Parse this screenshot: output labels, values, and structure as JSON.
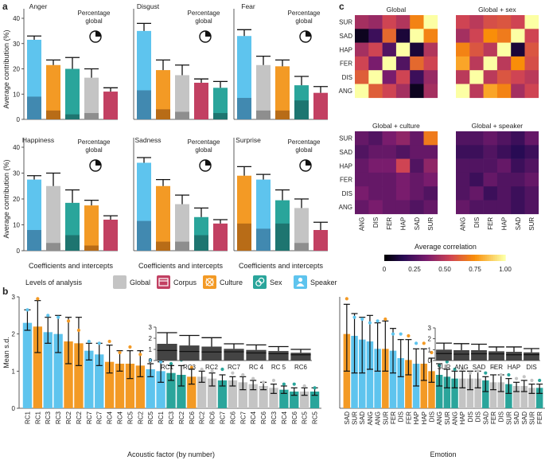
{
  "panel_labels": {
    "a": "a",
    "b": "b",
    "c": "c"
  },
  "colors": {
    "speaker": "#5ec4ee",
    "culture": "#f39a25",
    "sex": "#2aa59b",
    "global": "#c4c4c4",
    "corpus": "#c24062",
    "inset": "#444444",
    "speaker_dark": "#4189b0",
    "culture_dark": "#b86c17",
    "sex_dark": "#1e7570",
    "global_dark": "#8e8e8e",
    "corpus_dark": "#7f1d3d",
    "bg": "#ffffff"
  },
  "legend": {
    "title": "Levels of analysis",
    "items": [
      {
        "label": "Global",
        "color": "#c4c4c4",
        "icon": "bar-chart-icon"
      },
      {
        "label": "Corpus",
        "color": "#c24062",
        "icon": "corpus-icon"
      },
      {
        "label": "Culture",
        "color": "#f39a25",
        "icon": "culture-icon"
      },
      {
        "label": "Sex",
        "color": "#2aa59b",
        "icon": "sex-icon"
      },
      {
        "label": "Speaker",
        "color": "#5ec4ee",
        "icon": "speaker-icon"
      }
    ]
  },
  "chart_data": [
    {
      "id": "panel-a",
      "type": "bar",
      "ylabel": "Average contribution (%)",
      "xlabel": "Coefficients and intercepts",
      "ylim": [
        0,
        40
      ],
      "yticks": [
        0,
        10,
        20,
        30,
        40
      ],
      "pie_label": "Percentage global",
      "subplots": [
        {
          "title": "Anger",
          "pie_fraction": 0.25,
          "bars": [
            {
              "level": "Speaker",
              "value": 31.5,
              "err": 1.5,
              "intercept": 9
            },
            {
              "level": "Culture",
              "value": 21.5,
              "err": 2.0,
              "intercept": 3.5
            },
            {
              "level": "Sex",
              "value": 20.0,
              "err": 4.5,
              "intercept": 2
            },
            {
              "level": "Global",
              "value": 16.5,
              "err": 3.5,
              "intercept": 2.5
            },
            {
              "level": "Corpus",
              "value": 11.0,
              "err": 1.5,
              "intercept": 0
            }
          ]
        },
        {
          "title": "Disgust",
          "pie_fraction": 0.25,
          "bars": [
            {
              "level": "Speaker",
              "value": 35.0,
              "err": 3.0,
              "intercept": 11.5
            },
            {
              "level": "Culture",
              "value": 19.5,
              "err": 4.0,
              "intercept": 4.0
            },
            {
              "level": "Global",
              "value": 17.5,
              "err": 4.0,
              "intercept": 3.0
            },
            {
              "level": "Corpus",
              "value": 14.5,
              "err": 1.5,
              "intercept": 0
            },
            {
              "level": "Sex",
              "value": 12.5,
              "err": 2.5,
              "intercept": 2.5
            }
          ]
        },
        {
          "title": "Fear",
          "pie_fraction": 0.25,
          "bars": [
            {
              "level": "Speaker",
              "value": 33.0,
              "err": 2.5,
              "intercept": 8.5
            },
            {
              "level": "Global",
              "value": 21.5,
              "err": 3.5,
              "intercept": 3.5
            },
            {
              "level": "Culture",
              "value": 21.0,
              "err": 2.5,
              "intercept": 3.5
            },
            {
              "level": "Sex",
              "value": 13.5,
              "err": 3.5,
              "intercept": 7.5
            },
            {
              "level": "Corpus",
              "value": 10.5,
              "err": 2.5,
              "intercept": 0
            }
          ]
        },
        {
          "title": "Happiness",
          "pie_fraction": 0.25,
          "bars": [
            {
              "level": "Speaker",
              "value": 27.5,
              "err": 1.5,
              "intercept": 8.0
            },
            {
              "level": "Global",
              "value": 25.0,
              "err": 5.0,
              "intercept": 3.0
            },
            {
              "level": "Sex",
              "value": 18.5,
              "err": 5.0,
              "intercept": 6.0
            },
            {
              "level": "Culture",
              "value": 17.5,
              "err": 2.0,
              "intercept": 2.0
            },
            {
              "level": "Corpus",
              "value": 12.0,
              "err": 1.5,
              "intercept": 0
            }
          ]
        },
        {
          "title": "Sadness",
          "pie_fraction": 0.25,
          "bars": [
            {
              "level": "Speaker",
              "value": 34.0,
              "err": 2.0,
              "intercept": 11.5
            },
            {
              "level": "Culture",
              "value": 25.0,
              "err": 2.5,
              "intercept": 3.5
            },
            {
              "level": "Global",
              "value": 18.0,
              "err": 3.5,
              "intercept": 3.5
            },
            {
              "level": "Sex",
              "value": 13.0,
              "err": 3.5,
              "intercept": 6.0
            },
            {
              "level": "Corpus",
              "value": 10.5,
              "err": 1.5,
              "intercept": 0
            }
          ]
        },
        {
          "title": "Surprise",
          "pie_fraction": 0.25,
          "bars": [
            {
              "level": "Culture",
              "value": 29.0,
              "err": 3.5,
              "intercept": 10.5
            },
            {
              "level": "Speaker",
              "value": 27.5,
              "err": 2.0,
              "intercept": 8.5
            },
            {
              "level": "Sex",
              "value": 19.5,
              "err": 4.0,
              "intercept": 10.5
            },
            {
              "level": "Global",
              "value": 16.5,
              "err": 3.5,
              "intercept": 3.0
            },
            {
              "level": "Corpus",
              "value": 8.0,
              "err": 3.0,
              "intercept": 0
            }
          ]
        }
      ]
    },
    {
      "id": "panel-b-left",
      "type": "bar",
      "ylabel": "Mean s.d.",
      "xlabel": "Acoustic factor (by number)",
      "ylim": [
        0,
        3
      ],
      "yticks": [
        0,
        1,
        2,
        3
      ],
      "categories": [
        "RC1",
        "RC1",
        "RC3",
        "RC3",
        "RC2",
        "RC2",
        "RC7",
        "RC7",
        "RC4",
        "RC4",
        "RC5",
        "RC2",
        "RC5",
        "RC1",
        "RC3",
        "RC2",
        "RC6",
        "RC2",
        "RC6",
        "RC7",
        "RC6",
        "RC7",
        "RC4",
        "RC6",
        "RC3",
        "RC4",
        "RC6",
        "RC5",
        "RC5"
      ],
      "levels": [
        "Speaker",
        "Culture",
        "Speaker",
        "Speaker",
        "Culture",
        "Culture",
        "Speaker",
        "Speaker",
        "Culture",
        "Culture",
        "Culture",
        "Culture",
        "Speaker",
        "Speaker",
        "Sex",
        "Sex",
        "Culture",
        "Global",
        "Global",
        "Sex",
        "Global",
        "Global",
        "Global",
        "Global",
        "Global",
        "Sex",
        "Sex",
        "Global",
        "Sex"
      ],
      "values": [
        2.3,
        2.2,
        2.05,
        2.0,
        1.8,
        1.75,
        1.55,
        1.45,
        1.25,
        1.2,
        1.2,
        1.15,
        1.05,
        1.0,
        0.95,
        0.9,
        0.85,
        0.85,
        0.8,
        0.75,
        0.75,
        0.7,
        0.65,
        0.6,
        0.55,
        0.5,
        0.45,
        0.45,
        0.45
      ],
      "err_low": [
        0.2,
        0.7,
        0.3,
        0.5,
        0.6,
        0.6,
        0.25,
        0.3,
        0.3,
        0.2,
        0.4,
        0.3,
        0.2,
        0.3,
        0.2,
        0.3,
        0.2,
        0.15,
        0.2,
        0.15,
        0.15,
        0.2,
        0.15,
        0.1,
        0.15,
        0.1,
        0.1,
        0.1,
        0.1
      ],
      "err_high": [
        0.35,
        0.7,
        0.4,
        0.5,
        0.65,
        0.7,
        0.2,
        0.3,
        0.45,
        0.35,
        0.35,
        0.4,
        0.15,
        0.25,
        0.2,
        0.25,
        0.2,
        0.15,
        0.15,
        0.15,
        0.1,
        0.15,
        0.1,
        0.1,
        0.1,
        0.1,
        0.1,
        0.1,
        0.1
      ],
      "dots": [
        2.65,
        2.95,
        2.5,
        2.45,
        2.35,
        2.1,
        1.8,
        1.75,
        1.8,
        1.5,
        1.65,
        1.45,
        1.3,
        1.25,
        1.2,
        1.3,
        1.1,
        1.05,
        1.0,
        1.05,
        0.95,
        0.9,
        0.8,
        0.7,
        0.75,
        0.65,
        0.65,
        0.6,
        0.55
      ],
      "inset": {
        "ylim": [
          0,
          3
        ],
        "yticks": [
          0,
          1,
          2,
          3
        ],
        "categories": [
          "RC1",
          "RC3",
          "RC2",
          "RC7",
          "RC 4",
          "RC 5",
          "RC6"
        ],
        "values": [
          1.5,
          1.35,
          1.25,
          1.05,
          0.95,
          0.85,
          0.7
        ],
        "err": [
          1.0,
          0.9,
          0.8,
          0.45,
          0.45,
          0.4,
          0.3
        ]
      }
    },
    {
      "id": "panel-b-right",
      "type": "bar",
      "xlabel": "Emotion",
      "ylim": [
        0,
        3
      ],
      "categories": [
        "SAD",
        "SUR",
        "SAD",
        "ANG",
        "ANG",
        "SUR",
        "FER",
        "DIS",
        "FER",
        "HAP",
        "HAP",
        "DIS",
        "ANG",
        "SUR",
        "ANG",
        "HAP",
        "DIS",
        "DIS",
        "SAD",
        "FER",
        "DIS",
        "SUR",
        "SAD",
        "SAD",
        "SUR",
        "FER"
      ],
      "levels": [
        "Culture",
        "Speaker",
        "Speaker",
        "Speaker",
        "Speaker",
        "Culture",
        "Speaker",
        "Speaker",
        "Culture",
        "Speaker",
        "Culture",
        "Culture",
        "Sex",
        "Sex",
        "Sex",
        "Global",
        "Global",
        "Global",
        "Sex",
        "Global",
        "Global",
        "Sex",
        "Global",
        "Global",
        "Global",
        "Sex"
      ],
      "values": [
        2.0,
        1.95,
        1.85,
        1.8,
        1.6,
        1.6,
        1.55,
        1.35,
        1.3,
        1.2,
        1.2,
        1.0,
        0.9,
        0.85,
        0.8,
        0.8,
        0.8,
        0.8,
        0.75,
        0.7,
        0.7,
        0.65,
        0.6,
        0.6,
        0.55,
        0.55
      ],
      "err_low": [
        1.0,
        1.0,
        0.9,
        0.75,
        0.6,
        0.6,
        0.6,
        0.5,
        0.4,
        0.6,
        0.45,
        0.3,
        0.3,
        0.3,
        0.25,
        0.25,
        0.3,
        0.25,
        0.3,
        0.2,
        0.25,
        0.25,
        0.15,
        0.15,
        0.15,
        0.15
      ],
      "err_high": [
        0.8,
        0.6,
        0.6,
        0.7,
        0.7,
        0.75,
        0.6,
        0.5,
        0.55,
        0.4,
        0.4,
        0.35,
        0.3,
        0.2,
        0.2,
        0.2,
        0.2,
        0.2,
        0.1,
        0.2,
        0.2,
        0.15,
        0.1,
        0.15,
        0.1,
        0.1
      ],
      "dots": [
        2.95,
        2.45,
        2.4,
        2.3,
        2.35,
        2.4,
        2.0,
        2.0,
        1.95,
        1.75,
        1.75,
        1.5,
        1.15,
        1.25,
        1.05,
        1.05,
        0.95,
        1.0,
        0.95,
        1.1,
        0.9,
        0.9,
        0.8,
        0.85,
        0.75,
        0.75
      ],
      "inset": {
        "ylim": [
          0,
          3
        ],
        "yticks": [
          0,
          1,
          2,
          3
        ],
        "categories": [
          "SUR",
          "ANG",
          "SAD",
          "FER",
          "HAP",
          "DIS"
        ],
        "values": [
          1.0,
          0.95,
          0.95,
          0.85,
          0.8,
          0.75
        ],
        "err": [
          0.6,
          0.6,
          0.55,
          0.4,
          0.45,
          0.35
        ]
      }
    },
    {
      "id": "panel-c",
      "type": "heatmap",
      "rows": [
        "SUR",
        "SAD",
        "HAP",
        "FER",
        "DIS",
        "ANG"
      ],
      "cols": [
        "ANG",
        "DIS",
        "FER",
        "HAP",
        "SAD",
        "SUR"
      ],
      "colorbar": {
        "label": "Average correlation",
        "ticks": [
          0,
          0.25,
          0.5,
          0.75,
          1.0
        ],
        "tick_labels": [
          "0",
          "0.25",
          "0.50",
          "0.75",
          "1.00"
        ]
      },
      "matrices": [
        {
          "title": "Global",
          "values": [
            [
              0.45,
              0.42,
              0.55,
              0.48,
              0.72,
              1.0
            ],
            [
              0.05,
              0.2,
              0.65,
              0.1,
              1.0,
              0.72
            ],
            [
              0.45,
              0.55,
              0.25,
              1.0,
              0.1,
              0.48
            ],
            [
              0.55,
              0.35,
              1.0,
              0.25,
              0.65,
              0.55
            ],
            [
              0.62,
              1.0,
              0.35,
              0.55,
              0.2,
              0.42
            ],
            [
              1.0,
              0.62,
              0.55,
              0.45,
              0.05,
              0.45
            ]
          ]
        },
        {
          "title": "Global + sex",
          "values": [
            [
              0.55,
              0.5,
              0.58,
              0.6,
              0.55,
              1.0
            ],
            [
              0.45,
              0.55,
              0.75,
              0.7,
              1.0,
              0.55
            ],
            [
              0.72,
              0.6,
              0.5,
              1.0,
              0.1,
              0.6
            ],
            [
              0.8,
              0.5,
              1.0,
              0.5,
              0.75,
              0.58
            ],
            [
              0.5,
              1.0,
              0.5,
              0.6,
              0.55,
              0.5
            ],
            [
              1.0,
              0.5,
              0.8,
              0.72,
              0.45,
              0.55
            ]
          ]
        },
        {
          "title": "Global + culture",
          "values": [
            [
              0.3,
              0.25,
              0.35,
              0.4,
              0.3,
              0.7
            ],
            [
              0.25,
              0.3,
              0.3,
              0.25,
              0.3,
              0.3
            ],
            [
              0.3,
              0.35,
              0.35,
              0.55,
              0.25,
              0.4
            ],
            [
              0.3,
              0.3,
              0.3,
              0.35,
              0.3,
              0.35
            ],
            [
              0.35,
              0.3,
              0.3,
              0.35,
              0.3,
              0.25
            ],
            [
              0.3,
              0.35,
              0.3,
              0.3,
              0.25,
              0.3
            ]
          ]
        },
        {
          "title": "Global + speaker",
          "values": [
            [
              0.25,
              0.25,
              0.3,
              0.25,
              0.2,
              0.3
            ],
            [
              0.2,
              0.2,
              0.25,
              0.2,
              0.15,
              0.2
            ],
            [
              0.25,
              0.25,
              0.25,
              0.3,
              0.2,
              0.25
            ],
            [
              0.25,
              0.2,
              0.3,
              0.25,
              0.25,
              0.3
            ],
            [
              0.25,
              0.3,
              0.2,
              0.25,
              0.2,
              0.25
            ],
            [
              0.3,
              0.25,
              0.25,
              0.25,
              0.2,
              0.25
            ]
          ]
        }
      ]
    }
  ]
}
